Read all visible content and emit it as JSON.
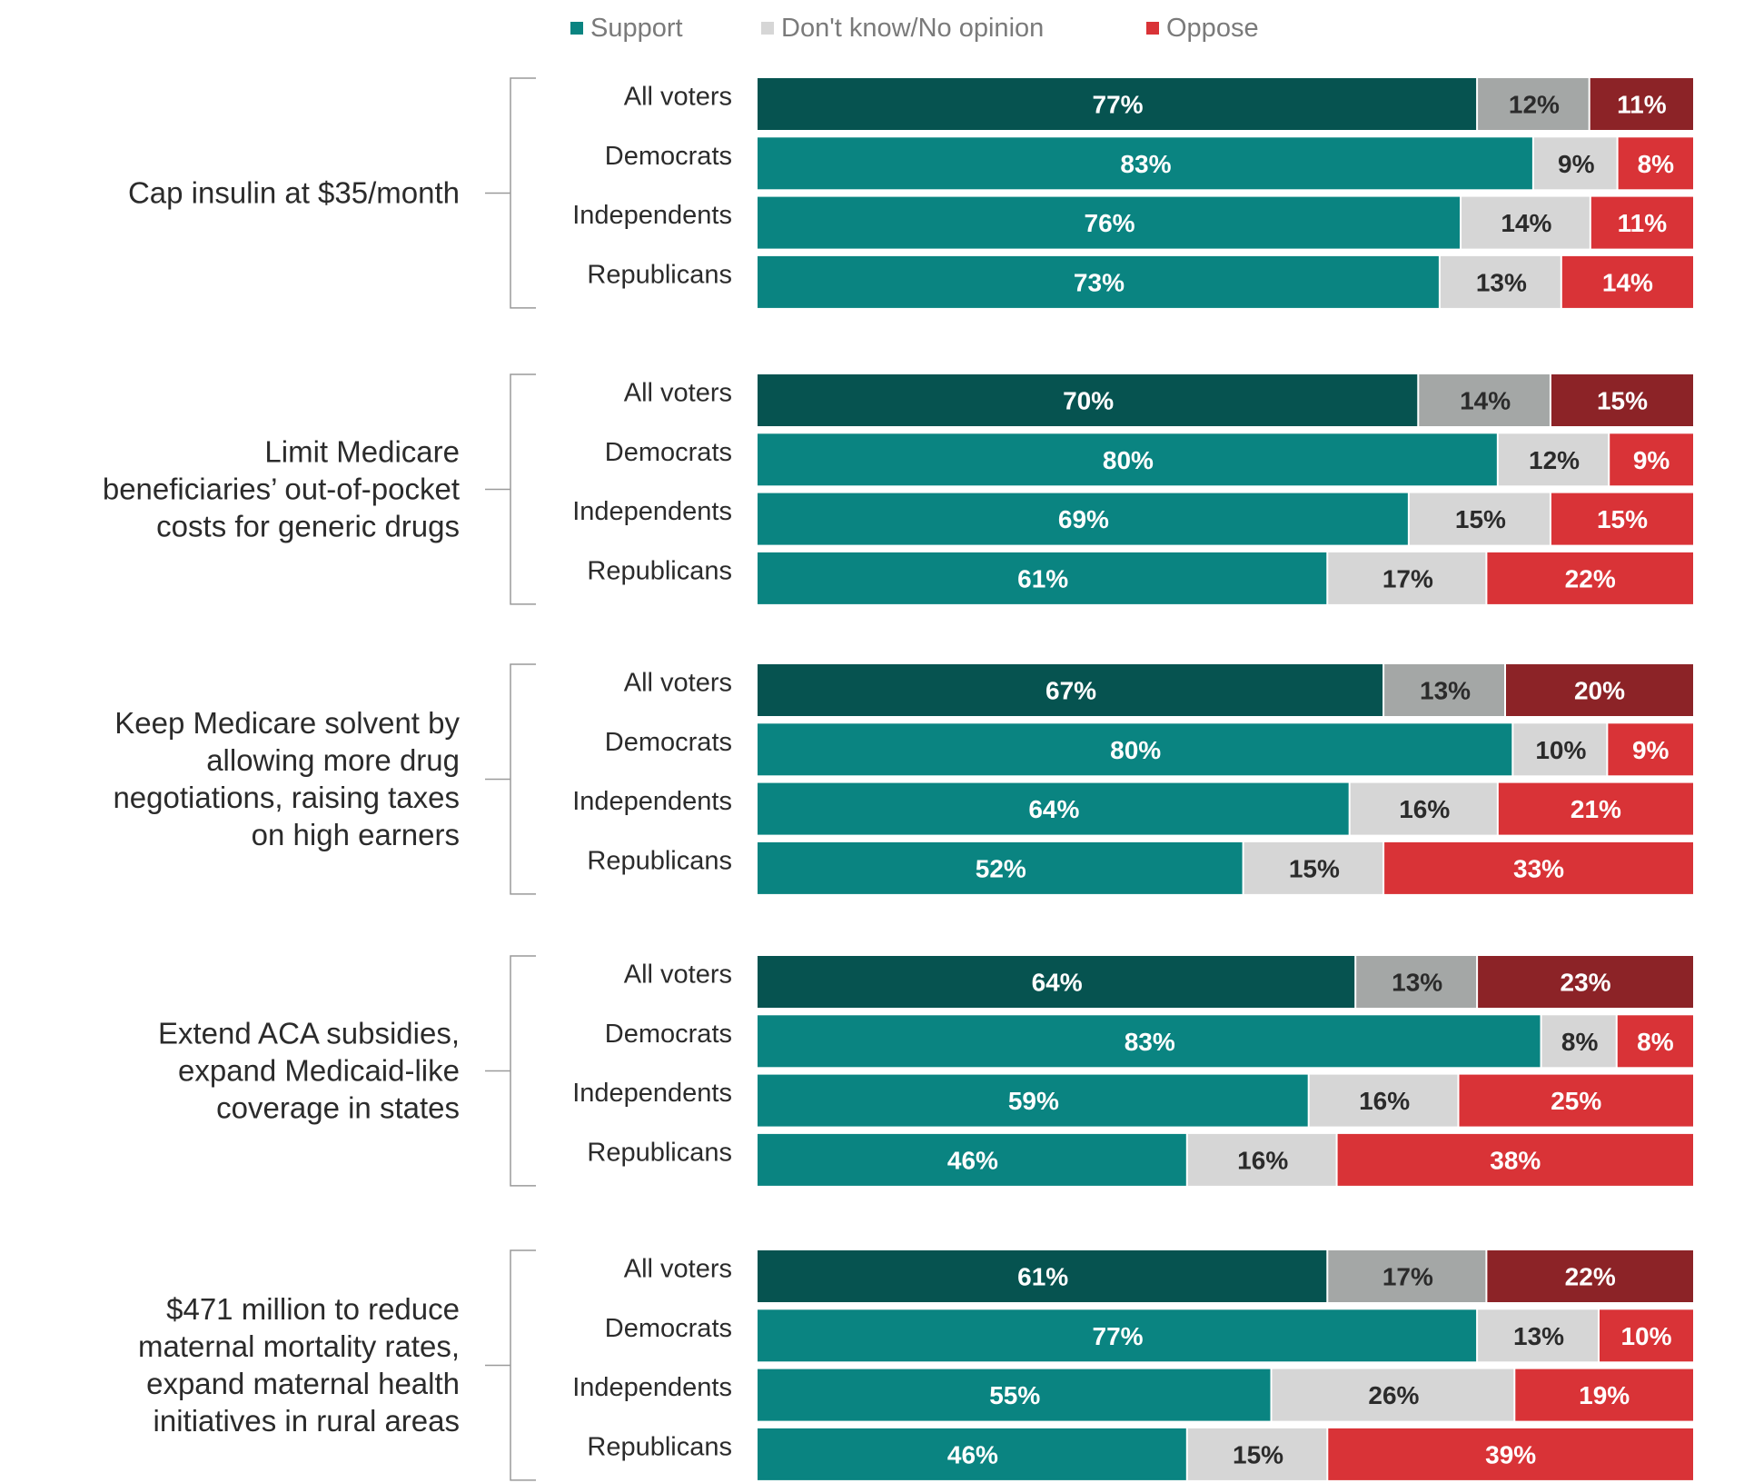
{
  "chart_data": {
    "type": "bar",
    "orientation": "horizontal",
    "stacked": true,
    "normalized_to_percent": true,
    "xlim": [
      0,
      100
    ],
    "grid": false,
    "legend_position": "top",
    "legend": [
      {
        "name": "Support",
        "color": "#0a8481"
      },
      {
        "name": "Don't know/No opinion",
        "color": "#d6d6d6"
      },
      {
        "name": "Oppose",
        "color": "#d93337"
      }
    ],
    "colors": {
      "support_all": "#065350",
      "support": "#0a8481",
      "dk_all": "#a4a7a6",
      "dk": "#d6d6d6",
      "oppose_all": "#8c2327",
      "oppose": "#d93337",
      "text_dark": "#2b2b2b",
      "text_light": "#ffffff",
      "bracket": "#9a9a9a"
    },
    "series_names": [
      "Support",
      "Don't know/No opinion",
      "Oppose"
    ],
    "groups": [
      {
        "title_lines": [
          "Cap insulin at $35/month"
        ],
        "rows": [
          {
            "label": "All voters",
            "values": [
              77,
              12,
              11
            ],
            "value_labels": [
              "77%",
              "12%",
              "11%"
            ]
          },
          {
            "label": "Democrats",
            "values": [
              83,
              9,
              8
            ],
            "value_labels": [
              "83%",
              "9%",
              "8%"
            ]
          },
          {
            "label": "Independents",
            "values": [
              76,
              14,
              11
            ],
            "value_labels": [
              "76%",
              "14%",
              "11%"
            ]
          },
          {
            "label": "Republicans",
            "values": [
              73,
              13,
              14
            ],
            "value_labels": [
              "73%",
              "13%",
              "14%"
            ]
          }
        ]
      },
      {
        "title_lines": [
          "Limit Medicare",
          "beneficiaries’ out-of-pocket",
          "costs for generic drugs"
        ],
        "rows": [
          {
            "label": "All voters",
            "values": [
              70,
              14,
              15
            ],
            "value_labels": [
              "70%",
              "14%",
              "15%"
            ]
          },
          {
            "label": "Democrats",
            "values": [
              80,
              12,
              9
            ],
            "value_labels": [
              "80%",
              "12%",
              "9%"
            ]
          },
          {
            "label": "Independents",
            "values": [
              69,
              15,
              15
            ],
            "value_labels": [
              "69%",
              "15%",
              "15%"
            ]
          },
          {
            "label": "Republicans",
            "values": [
              61,
              17,
              22
            ],
            "value_labels": [
              "61%",
              "17%",
              "22%"
            ]
          }
        ]
      },
      {
        "title_lines": [
          "Keep Medicare solvent by",
          "allowing more drug",
          "negotiations, raising taxes",
          "on high earners"
        ],
        "rows": [
          {
            "label": "All voters",
            "values": [
              67,
              13,
              20
            ],
            "value_labels": [
              "67%",
              "13%",
              "20%"
            ]
          },
          {
            "label": "Democrats",
            "values": [
              80,
              10,
              9
            ],
            "value_labels": [
              "80%",
              "10%",
              "9%"
            ]
          },
          {
            "label": "Independents",
            "values": [
              64,
              16,
              21
            ],
            "value_labels": [
              "64%",
              "16%",
              "21%"
            ]
          },
          {
            "label": "Republicans",
            "values": [
              52,
              15,
              33
            ],
            "value_labels": [
              "52%",
              "15%",
              "33%"
            ]
          }
        ]
      },
      {
        "title_lines": [
          "Extend ACA subsidies,",
          "expand Medicaid-like",
          "coverage in states"
        ],
        "rows": [
          {
            "label": "All voters",
            "values": [
              64,
              13,
              23
            ],
            "value_labels": [
              "64%",
              "13%",
              "23%"
            ]
          },
          {
            "label": "Democrats",
            "values": [
              83,
              8,
              8
            ],
            "value_labels": [
              "83%",
              "8%",
              "8%"
            ]
          },
          {
            "label": "Independents",
            "values": [
              59,
              16,
              25
            ],
            "value_labels": [
              "59%",
              "16%",
              "25%"
            ]
          },
          {
            "label": "Republicans",
            "values": [
              46,
              16,
              38
            ],
            "value_labels": [
              "46%",
              "16%",
              "38%"
            ]
          }
        ]
      },
      {
        "title_lines": [
          "$471 million to reduce",
          "maternal mortality rates,",
          "expand maternal health",
          "initiatives in rural areas"
        ],
        "rows": [
          {
            "label": "All voters",
            "values": [
              61,
              17,
              22
            ],
            "value_labels": [
              "61%",
              "17%",
              "22%"
            ]
          },
          {
            "label": "Democrats",
            "values": [
              77,
              13,
              10
            ],
            "value_labels": [
              "77%",
              "13%",
              "10%"
            ]
          },
          {
            "label": "Independents",
            "values": [
              55,
              26,
              19
            ],
            "value_labels": [
              "55%",
              "26%",
              "19%"
            ]
          },
          {
            "label": "Republicans",
            "values": [
              46,
              15,
              39
            ],
            "value_labels": [
              "46%",
              "15%",
              "39%"
            ]
          }
        ]
      }
    ]
  }
}
